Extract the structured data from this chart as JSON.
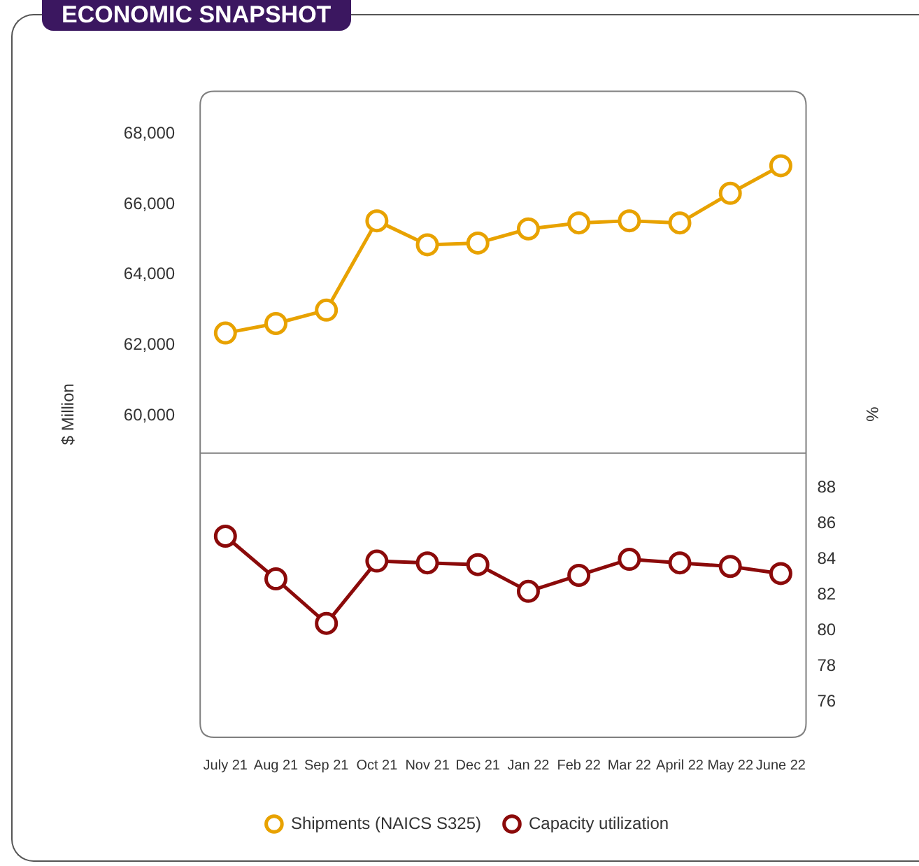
{
  "chart_data": {
    "type": "line",
    "title": "ECONOMIC SNAPSHOT",
    "ylabel": "$ Million",
    "y2label": "%",
    "categories": [
      "July 21",
      "Aug 21",
      "Sep 21",
      "Oct 21",
      "Nov 21",
      "Dec 21",
      "Jan 22",
      "Feb 22",
      "Mar 22",
      "April 22",
      "May 22",
      "June 22"
    ],
    "series": [
      {
        "name": "Shipments (NAICS S325)",
        "color": "#e8a200",
        "values": [
          62350,
          62620,
          63000,
          65530,
          64850,
          64900,
          65300,
          65470,
          65530,
          65470,
          66310,
          67090
        ]
      },
      {
        "name": "Capacity utilization",
        "color": "#8b0a0a",
        "axis": "y2",
        "values": [
          85.3,
          82.9,
          80.4,
          83.9,
          83.8,
          83.7,
          82.2,
          83.1,
          84.0,
          83.8,
          83.6,
          83.2
        ]
      }
    ],
    "ylim": [
      50900,
      69200
    ],
    "yticks": [
      {
        "value": 60000,
        "label": "60,000"
      },
      {
        "value": 62000,
        "label": "62,000"
      },
      {
        "value": 64000,
        "label": "64,000"
      },
      {
        "value": 66000,
        "label": "66,000"
      },
      {
        "value": 68000,
        "label": "68,000"
      }
    ],
    "y2lim": [
      74,
      110.3
    ],
    "y2ticks": [
      76,
      78,
      80,
      82,
      84,
      86,
      88
    ],
    "ref_lines": [
      {
        "axis": "y",
        "value": 58950,
        "color": "#7f7f7f"
      }
    ],
    "marker": "circle",
    "legend": "bottom"
  }
}
